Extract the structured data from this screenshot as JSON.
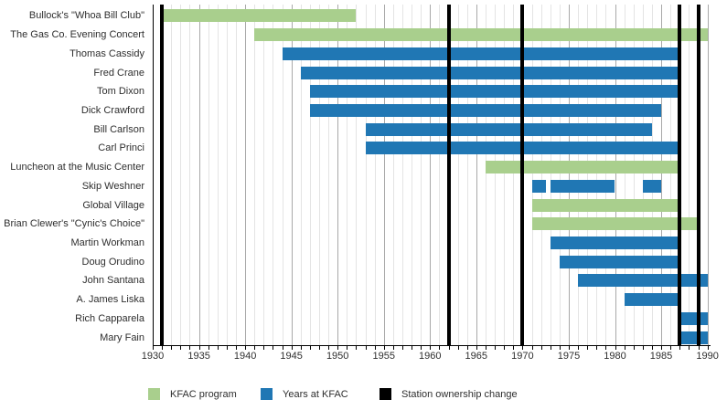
{
  "chart_data": {
    "type": "bar",
    "variant": "horizontal-gantt-timeline",
    "title": "",
    "x_axis": {
      "min": 1930,
      "max": 1990,
      "major_tick_step": 5,
      "minor_tick_step": 1,
      "tick_labels": [
        "1930",
        "1935",
        "1940",
        "1945",
        "1950",
        "1955",
        "1960",
        "1965",
        "1970",
        "1975",
        "1980",
        "1985",
        "1990"
      ]
    },
    "grid": "vertical gridlines every year, darker line every 5 years",
    "legend_position": "bottom",
    "rows": [
      {
        "label": "Bullock's \"Whoa Bill Club\"",
        "series": "KFAC program",
        "segments": [
          {
            "start": 1931,
            "end": 1952
          }
        ]
      },
      {
        "label": "The Gas Co. Evening Concert",
        "series": "KFAC program",
        "segments": [
          {
            "start": 1941,
            "end": 1990
          }
        ]
      },
      {
        "label": "Thomas Cassidy",
        "series": "Years at KFAC",
        "segments": [
          {
            "start": 1944,
            "end": 1987
          }
        ]
      },
      {
        "label": "Fred Crane",
        "series": "Years at KFAC",
        "segments": [
          {
            "start": 1946,
            "end": 1987
          }
        ]
      },
      {
        "label": "Tom Dixon",
        "series": "Years at KFAC",
        "segments": [
          {
            "start": 1947,
            "end": 1987
          }
        ]
      },
      {
        "label": "Dick Crawford",
        "series": "Years at KFAC",
        "segments": [
          {
            "start": 1947,
            "end": 1985
          }
        ]
      },
      {
        "label": "Bill Carlson",
        "series": "Years at KFAC",
        "segments": [
          {
            "start": 1953,
            "end": 1984
          }
        ]
      },
      {
        "label": "Carl Princi",
        "series": "Years at KFAC",
        "segments": [
          {
            "start": 1953,
            "end": 1987
          }
        ]
      },
      {
        "label": "Luncheon at the Music Center",
        "series": "KFAC program",
        "segments": [
          {
            "start": 1966,
            "end": 1987
          }
        ]
      },
      {
        "label": "Skip Weshner",
        "series": "Years at KFAC",
        "segments": [
          {
            "start": 1971,
            "end": 1972.5
          },
          {
            "start": 1973,
            "end": 1980
          },
          {
            "start": 1983,
            "end": 1985
          }
        ]
      },
      {
        "label": "Global Village",
        "series": "KFAC program",
        "segments": [
          {
            "start": 1971,
            "end": 1987
          }
        ]
      },
      {
        "label": "Brian Clewer's \"Cynic's Choice\"",
        "series": "KFAC program",
        "segments": [
          {
            "start": 1971,
            "end": 1989
          }
        ]
      },
      {
        "label": "Martin Workman",
        "series": "Years at KFAC",
        "segments": [
          {
            "start": 1973,
            "end": 1987
          }
        ]
      },
      {
        "label": "Doug Orudino",
        "series": "Years at KFAC",
        "segments": [
          {
            "start": 1974,
            "end": 1987
          }
        ]
      },
      {
        "label": "John Santana",
        "series": "Years at KFAC",
        "segments": [
          {
            "start": 1976,
            "end": 1990
          }
        ]
      },
      {
        "label": "A. James Liska",
        "series": "Years at KFAC",
        "segments": [
          {
            "start": 1981,
            "end": 1987
          }
        ]
      },
      {
        "label": "Rich Capparela",
        "series": "Years at KFAC",
        "segments": [
          {
            "start": 1987,
            "end": 1990
          }
        ]
      },
      {
        "label": "Mary Fain",
        "series": "Years at KFAC",
        "segments": [
          {
            "start": 1987,
            "end": 1990
          }
        ]
      }
    ],
    "ownership_change_years": [
      1931,
      1962,
      1970,
      1987,
      1989
    ],
    "legend": [
      {
        "label": "KFAC program",
        "color": "#a9cf8d"
      },
      {
        "label": "Years at KFAC",
        "color": "#2077b4"
      },
      {
        "label": "Station ownership change",
        "color": "#000000"
      }
    ]
  },
  "colors": {
    "program_green": "#a9cf8d",
    "kfac_blue": "#2077b4",
    "ownership_black": "#000000",
    "grid_minor": "#e4e4e4",
    "grid_major": "#a9a9a9",
    "axis": "#000000",
    "text": "#2e2e2e",
    "background": "#ffffff"
  }
}
